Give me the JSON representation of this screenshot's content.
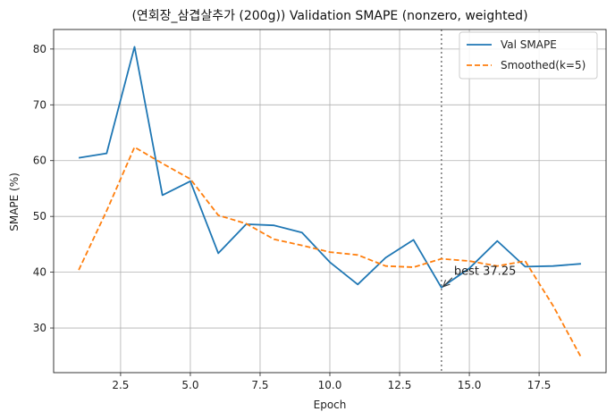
{
  "chart_data": {
    "type": "line",
    "title": "(연회장_삼겹살추가 (200g)) Validation SMAPE (nonzero, weighted)",
    "xlabel": "Epoch",
    "ylabel": "SMAPE (%)",
    "xlim": [
      0.1,
      19.9
    ],
    "ylim": [
      22,
      83.5
    ],
    "xticks": [
      2.5,
      5.0,
      7.5,
      10.0,
      12.5,
      15.0,
      17.5
    ],
    "xtick_labels": [
      "2.5",
      "5.0",
      "7.5",
      "10.0",
      "12.5",
      "15.0",
      "17.5"
    ],
    "yticks": [
      30,
      40,
      50,
      60,
      70,
      80
    ],
    "ytick_labels": [
      "30",
      "40",
      "50",
      "60",
      "70",
      "80"
    ],
    "grid": true,
    "legend_position": "top-right",
    "x": [
      1,
      2,
      3,
      4,
      5,
      6,
      7,
      8,
      9,
      10,
      11,
      12,
      13,
      14,
      15,
      16,
      17,
      18,
      19
    ],
    "series": [
      {
        "name": "Val SMAPE",
        "color": "#1f77b4",
        "style": "solid",
        "values": [
          60.5,
          61.3,
          80.4,
          53.8,
          56.3,
          43.4,
          48.6,
          48.4,
          47.1,
          41.8,
          37.8,
          42.6,
          45.8,
          37.25,
          40.7,
          45.6,
          41.0,
          41.1,
          41.5
        ]
      },
      {
        "name": "Smoothed(k=5)",
        "color": "#ff7f0e",
        "style": "dashed",
        "values": [
          40.4,
          51.0,
          62.4,
          59.5,
          56.7,
          50.2,
          48.7,
          45.9,
          44.8,
          43.6,
          43.1,
          41.1,
          40.9,
          42.4,
          42.0,
          41.1,
          42.0,
          34.0,
          24.8
        ]
      }
    ],
    "vline": {
      "x": 14,
      "color": "#7f7f7f",
      "style": "dotted"
    },
    "annotation": {
      "text": "best 37.25",
      "x": 14,
      "y": 37.25,
      "text_x": 14.45,
      "text_y": 39.5
    }
  }
}
